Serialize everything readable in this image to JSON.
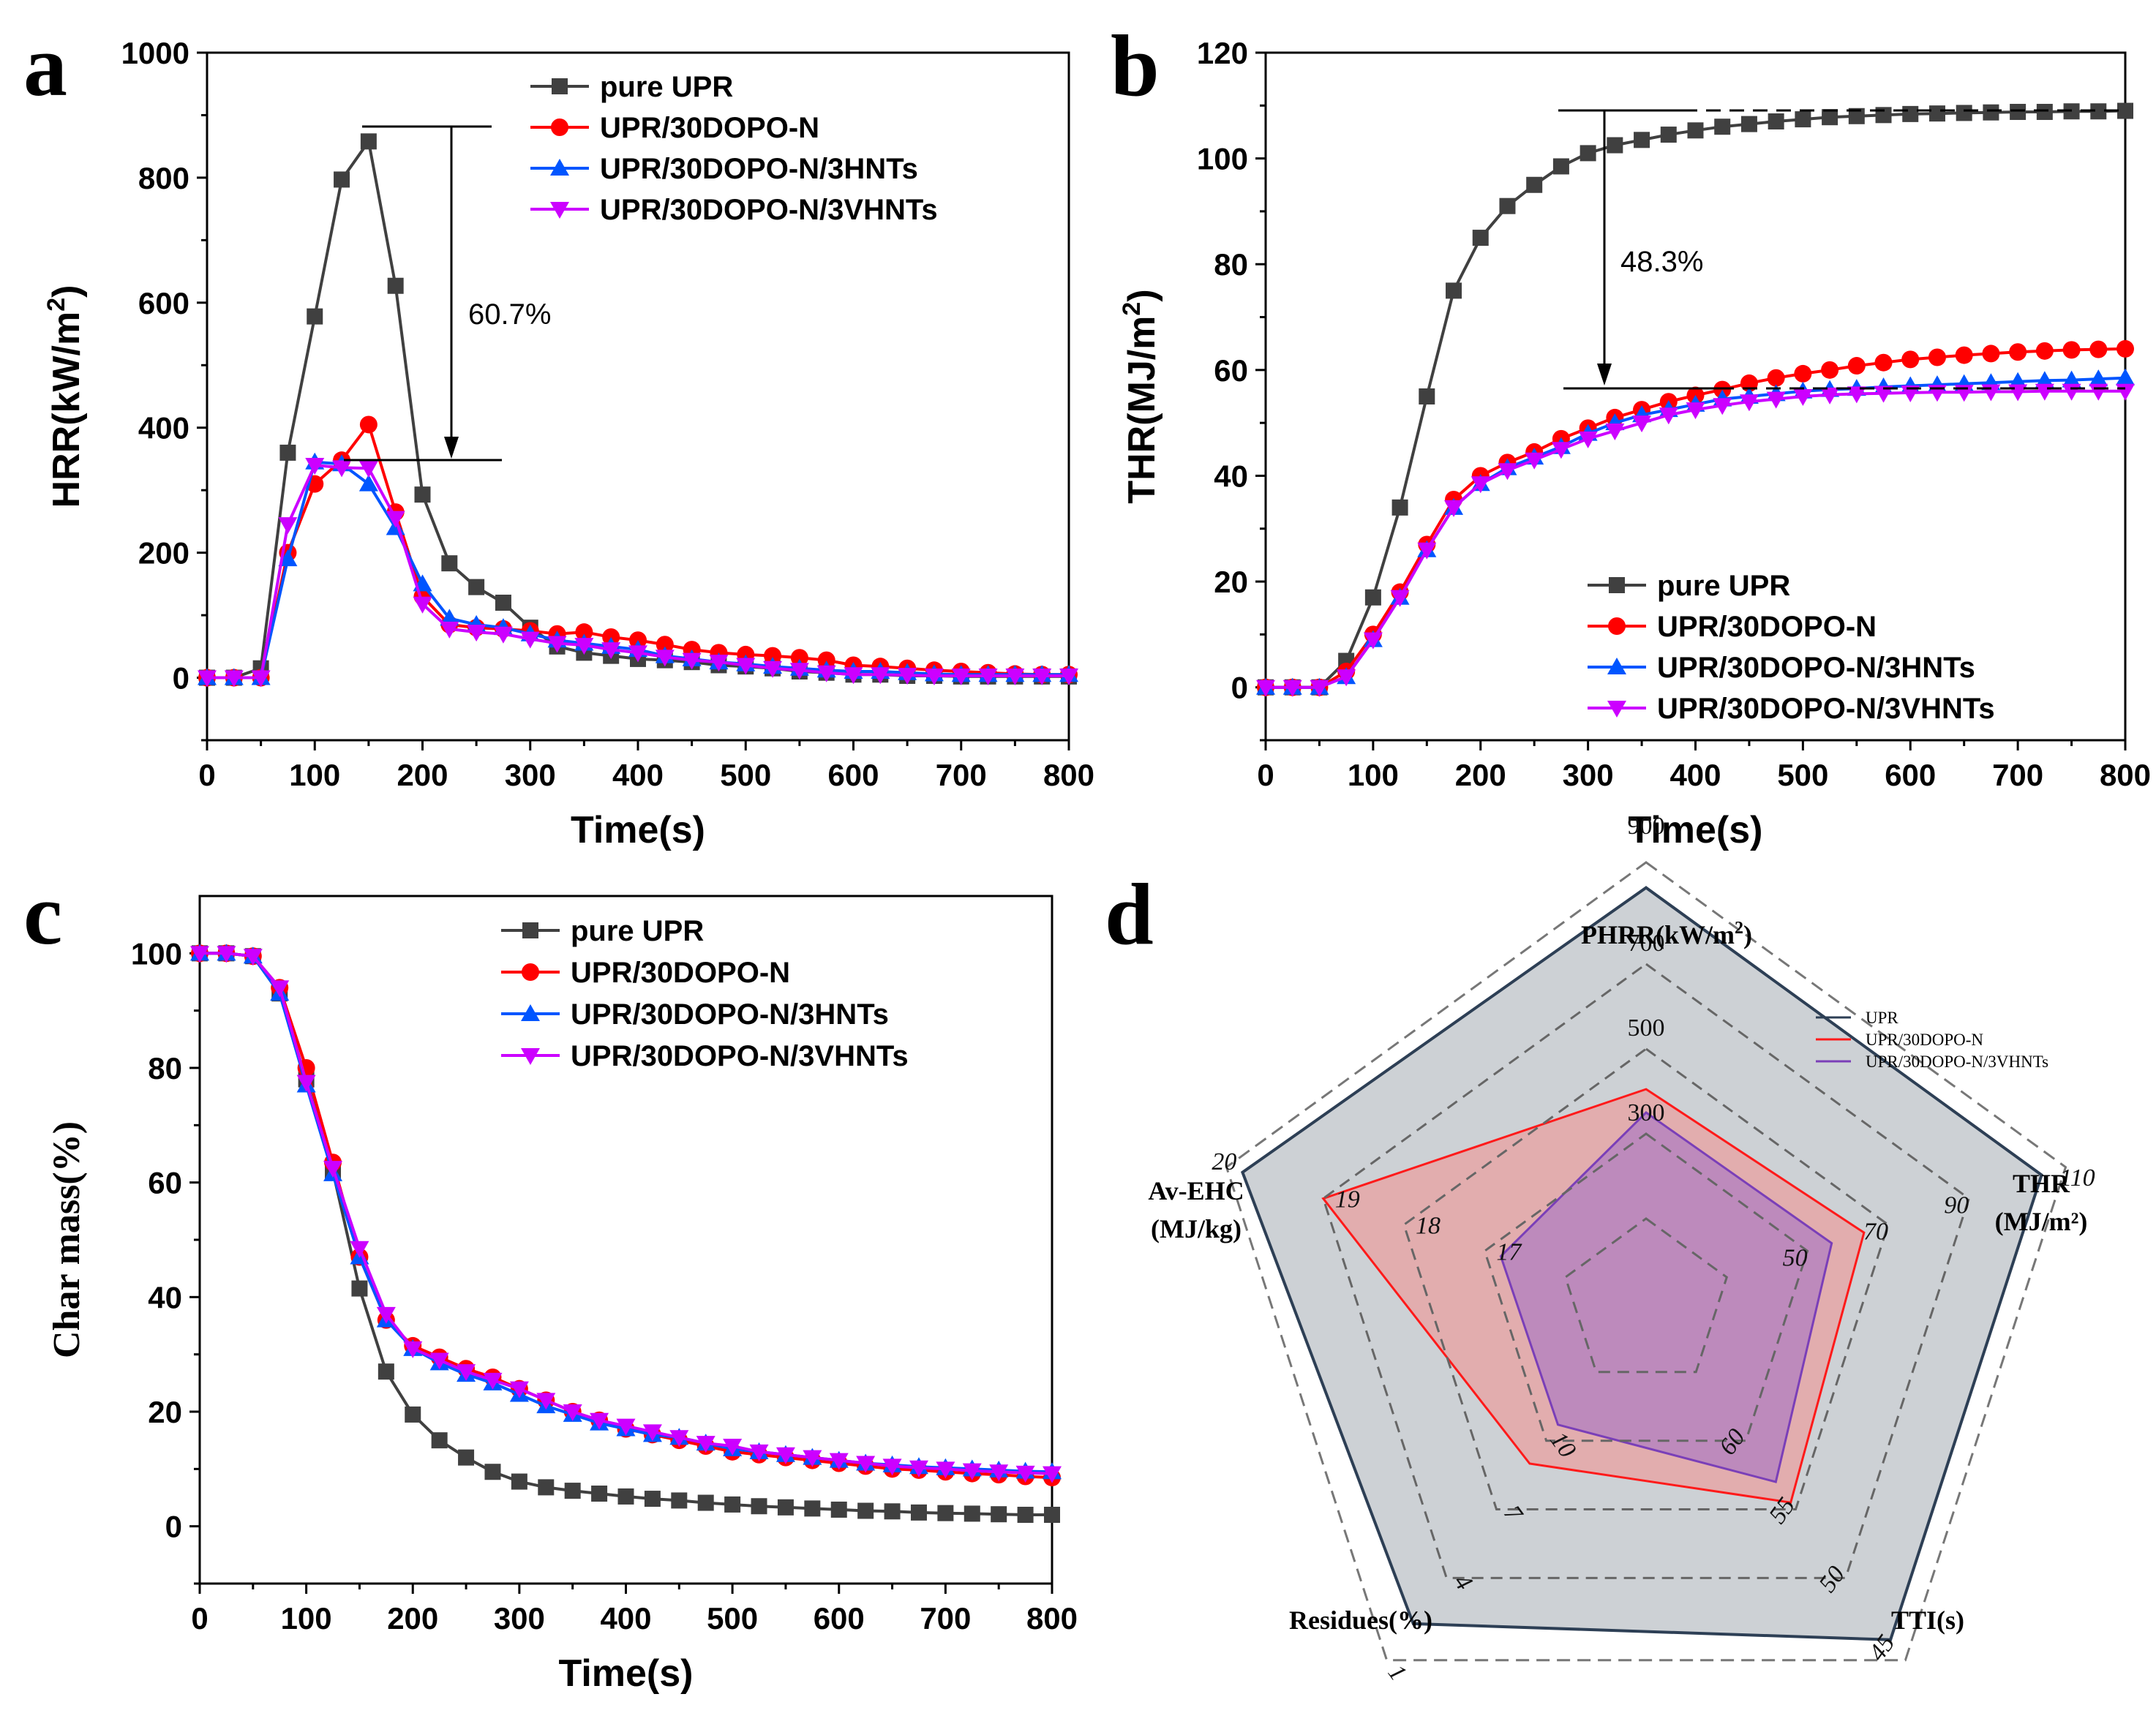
{
  "chart_data": [
    {
      "panel": "a",
      "type": "line",
      "xlabel": "Time(s)",
      "ylabel_main": "HRR(kW/m",
      "ylabel_sup": "2",
      "ylabel_tail": ")",
      "xlim": [
        0,
        800
      ],
      "ylim": [
        -100,
        1000
      ],
      "xticks": [
        0,
        100,
        200,
        300,
        400,
        500,
        600,
        700,
        800
      ],
      "yticks": [
        0,
        200,
        400,
        600,
        800,
        1000
      ],
      "legend_position": "top-right",
      "annotation": "60.7%",
      "x": [
        0,
        25,
        50,
        75,
        100,
        125,
        150,
        175,
        200,
        225,
        250,
        275,
        300,
        325,
        350,
        375,
        400,
        425,
        450,
        475,
        500,
        525,
        550,
        575,
        600,
        625,
        650,
        675,
        700,
        725,
        750,
        775,
        800
      ],
      "series": [
        {
          "name": "pure UPR",
          "color": "#404040",
          "marker": "square",
          "values": [
            0,
            0,
            15,
            360,
            578,
            797,
            858,
            627,
            293,
            183,
            145,
            120,
            80,
            50,
            40,
            35,
            30,
            28,
            25,
            20,
            18,
            15,
            10,
            8,
            5,
            5,
            3,
            3,
            2,
            2,
            2,
            2,
            2
          ]
        },
        {
          "name": "UPR/30DOPO-N",
          "color": "#ff0000",
          "marker": "circle",
          "values": [
            0,
            0,
            0,
            200,
            310,
            348,
            405,
            265,
            130,
            85,
            80,
            78,
            75,
            70,
            73,
            65,
            60,
            53,
            45,
            40,
            37,
            35,
            32,
            28,
            20,
            18,
            15,
            12,
            10,
            8,
            6,
            5,
            5
          ]
        },
        {
          "name": "UPR/30DOPO-N/3HNTs",
          "color": "#0055ff",
          "marker": "triangle-up",
          "values": [
            0,
            0,
            0,
            190,
            345,
            342,
            310,
            240,
            150,
            95,
            85,
            80,
            70,
            60,
            55,
            50,
            45,
            35,
            30,
            25,
            22,
            18,
            15,
            12,
            10,
            10,
            8,
            6,
            5,
            5,
            5,
            5,
            5
          ]
        },
        {
          "name": "UPR/30DOPO-N/3VHNTs",
          "color": "#cc00ff",
          "marker": "triangle-down",
          "values": [
            0,
            0,
            0,
            245,
            340,
            336,
            335,
            255,
            118,
            78,
            73,
            70,
            62,
            55,
            52,
            45,
            40,
            33,
            28,
            25,
            20,
            15,
            12,
            8,
            5,
            5,
            4,
            3,
            3,
            3,
            3,
            3,
            3
          ]
        }
      ]
    },
    {
      "panel": "b",
      "type": "line",
      "xlabel": "Time(s)",
      "ylabel_main": "THR(MJ/m",
      "ylabel_sup": "2",
      "ylabel_tail": ")",
      "xlim": [
        0,
        800
      ],
      "ylim": [
        -10,
        120
      ],
      "xticks": [
        0,
        100,
        200,
        300,
        400,
        500,
        600,
        700,
        800
      ],
      "yticks": [
        0,
        20,
        40,
        60,
        80,
        100,
        120
      ],
      "legend_position": "bottom-right",
      "annotation": "48.3%",
      "x": [
        0,
        25,
        50,
        75,
        100,
        125,
        150,
        175,
        200,
        225,
        250,
        275,
        300,
        325,
        350,
        375,
        400,
        425,
        450,
        475,
        500,
        525,
        550,
        575,
        600,
        625,
        650,
        675,
        700,
        725,
        750,
        775,
        800
      ],
      "series": [
        {
          "name": "pure UPR",
          "color": "#404040",
          "marker": "square",
          "values": [
            0,
            0,
            0,
            5,
            17,
            34,
            55,
            75,
            85,
            91,
            95,
            98.5,
            101,
            102.5,
            103.5,
            104.5,
            105.3,
            106,
            106.5,
            107,
            107.4,
            107.8,
            108,
            108.2,
            108.4,
            108.5,
            108.6,
            108.7,
            108.8,
            108.8,
            108.9,
            108.9,
            109
          ]
        },
        {
          "name": "UPR/30DOPO-N",
          "color": "#ff0000",
          "marker": "circle",
          "values": [
            0,
            0,
            0,
            3,
            10,
            18,
            27,
            35.5,
            40,
            42.5,
            44.5,
            47,
            49,
            51,
            52.5,
            54,
            55.2,
            56.3,
            57.5,
            58.5,
            59.3,
            60,
            60.8,
            61.4,
            62,
            62.4,
            62.8,
            63.1,
            63.4,
            63.6,
            63.8,
            63.9,
            64
          ]
        },
        {
          "name": "UPR/30DOPO-N/3HNTs",
          "color": "#0055ff",
          "marker": "triangle-up",
          "values": [
            0,
            0,
            0,
            2,
            9,
            17,
            26,
            34,
            38.5,
            41.5,
            43.5,
            45.5,
            48,
            50,
            51.5,
            52.5,
            53.5,
            54.5,
            55,
            55.5,
            56,
            56.3,
            56.5,
            56.8,
            57,
            57.2,
            57.4,
            57.6,
            57.8,
            58,
            58.1,
            58.3,
            58.5
          ]
        },
        {
          "name": "UPR/30DOPO-N/3VHNTs",
          "color": "#cc00ff",
          "marker": "triangle-down",
          "values": [
            0,
            0,
            0,
            2,
            9,
            17,
            26,
            34,
            38.5,
            41,
            43,
            45,
            47,
            48.5,
            50,
            51.5,
            52.5,
            53.3,
            54,
            54.5,
            55,
            55.3,
            55.5,
            55.6,
            55.7,
            55.8,
            55.8,
            55.9,
            55.9,
            56,
            56,
            56,
            56
          ]
        }
      ]
    },
    {
      "panel": "c",
      "type": "line",
      "xlabel": "Time(s)",
      "ylabel_main": "Char mass(%)",
      "ylabel_sup": "",
      "ylabel_tail": "",
      "xlim": [
        0,
        800
      ],
      "ylim": [
        -10,
        110
      ],
      "xticks": [
        0,
        100,
        200,
        300,
        400,
        500,
        600,
        700,
        800
      ],
      "yticks": [
        0,
        20,
        40,
        60,
        80,
        100
      ],
      "legend_position": "top-right",
      "annotation": "",
      "x": [
        0,
        25,
        50,
        75,
        100,
        125,
        150,
        175,
        200,
        225,
        250,
        275,
        300,
        325,
        350,
        375,
        400,
        425,
        450,
        475,
        500,
        525,
        550,
        575,
        600,
        625,
        650,
        675,
        700,
        725,
        750,
        775,
        800
      ],
      "series": [
        {
          "name": "pure UPR",
          "color": "#404040",
          "marker": "square",
          "values": [
            100,
            100,
            99.5,
            93,
            78,
            62,
            41.5,
            27,
            19.5,
            15,
            12,
            9.5,
            7.8,
            6.8,
            6.2,
            5.7,
            5.2,
            4.8,
            4.5,
            4.1,
            3.8,
            3.5,
            3.3,
            3.1,
            2.9,
            2.7,
            2.6,
            2.4,
            2.3,
            2.2,
            2.1,
            2.0,
            2.0
          ]
        },
        {
          "name": "UPR/30DOPO-N",
          "color": "#ff0000",
          "marker": "circle",
          "values": [
            100,
            100,
            99.5,
            94,
            80,
            63.5,
            47,
            36,
            31.5,
            29.5,
            27.5,
            26,
            24,
            22,
            20,
            18.5,
            17,
            16,
            15,
            14,
            13,
            12.5,
            12,
            11.5,
            11,
            10.5,
            10,
            9.8,
            9.5,
            9.2,
            9,
            8.7,
            8.5
          ]
        },
        {
          "name": "UPR/30DOPO-N/3HNTs",
          "color": "#0055ff",
          "marker": "triangle-up",
          "values": [
            100,
            100,
            99.5,
            93,
            77,
            61.5,
            47,
            36,
            31,
            28.5,
            26.5,
            25,
            23,
            21,
            19.5,
            18,
            17,
            16,
            15.5,
            14.5,
            13.5,
            13,
            12.5,
            12,
            11.5,
            11,
            10.7,
            10.4,
            10.2,
            10,
            9.8,
            9.6,
            9.5
          ]
        },
        {
          "name": "UPR/30DOPO-N/3VHNTs",
          "color": "#cc00ff",
          "marker": "triangle-down",
          "values": [
            100,
            100,
            99.5,
            94,
            77.5,
            62.5,
            48.5,
            37,
            31,
            29,
            27,
            25.5,
            24,
            22,
            20,
            18.5,
            17.5,
            16.5,
            15.5,
            14.5,
            14,
            13,
            12.5,
            12,
            11.5,
            11,
            10.5,
            10.2,
            10,
            9.7,
            9.5,
            9.3,
            9.2
          ]
        }
      ]
    },
    {
      "panel": "d",
      "type": "radar",
      "axes": [
        {
          "name": "PHRR(kW/m",
          "sup": "2",
          "tail": ")",
          "line2": "",
          "ticks": [
            "900",
            "700",
            "500",
            "300"
          ]
        },
        {
          "name": "THR",
          "sup": "",
          "tail": "",
          "line2": "(MJ/m²)",
          "ticks": [
            "110",
            "90",
            "70",
            "50"
          ]
        },
        {
          "name": "TTI(s)",
          "sup": "",
          "tail": "",
          "line2": "",
          "ticks": [
            "45",
            "50",
            "55",
            "60"
          ]
        },
        {
          "name": "Residues(%)",
          "sup": "",
          "tail": "",
          "line2": "",
          "ticks": [
            "1",
            "4",
            "7",
            "10"
          ]
        },
        {
          "name": "Av-EHC",
          "sup": "",
          "tail": "",
          "line2": "(MJ/kg)",
          "ticks": [
            "20",
            "19",
            "18",
            "17"
          ]
        }
      ],
      "legend_position": "top-right",
      "series": [
        {
          "name": "UPR",
          "color": "#2d3f55",
          "fill": "#cdd1d5",
          "values": [
            880,
            108,
            45.5,
            2,
            20
          ]
        },
        {
          "name": "UPR/30DOPO-N",
          "color": "#ff1a1a",
          "fill": "#e8a0a0",
          "values": [
            405,
            64,
            55.5,
            9,
            19
          ]
        },
        {
          "name": "UPR/30DOPO-N/3VHNTs",
          "color": "#7a3fb8",
          "fill": "#b07fc0",
          "values": [
            350,
            56,
            57,
            10.7,
            16.8
          ]
        }
      ]
    }
  ]
}
